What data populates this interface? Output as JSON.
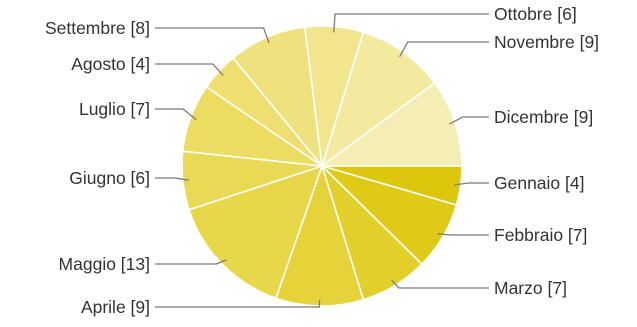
{
  "chart_data": {
    "type": "pie",
    "title": "",
    "start": "3 o'clock",
    "direction": "clockwise",
    "legend": "none",
    "slices": [
      {
        "label": "Gennaio [4]",
        "value": 4,
        "color": "#dcc70c"
      },
      {
        "label": "Febbraio [7]",
        "value": 7,
        "color": "#e0ca18"
      },
      {
        "label": "Marzo [7]",
        "value": 7,
        "color": "#e3cf2a"
      },
      {
        "label": "Aprile [9]",
        "value": 9,
        "color": "#e6d33a"
      },
      {
        "label": "Maggio [13]",
        "value": 13,
        "color": "#e8d748"
      },
      {
        "label": "Giugno [6]",
        "value": 6,
        "color": "#ead955"
      },
      {
        "label": "Luglio [7]",
        "value": 7,
        "color": "#ecdc62"
      },
      {
        "label": "Agosto [4]",
        "value": 4,
        "color": "#eedf70"
      },
      {
        "label": "Settembre [8]",
        "value": 8,
        "color": "#efe27e"
      },
      {
        "label": "Ottobre [6]",
        "value": 6,
        "color": "#f1e58e"
      },
      {
        "label": "Novembre [9]",
        "value": 9,
        "color": "#f3e99f"
      },
      {
        "label": "Dicembre [9]",
        "value": 9,
        "color": "#f5eeb4"
      }
    ]
  }
}
